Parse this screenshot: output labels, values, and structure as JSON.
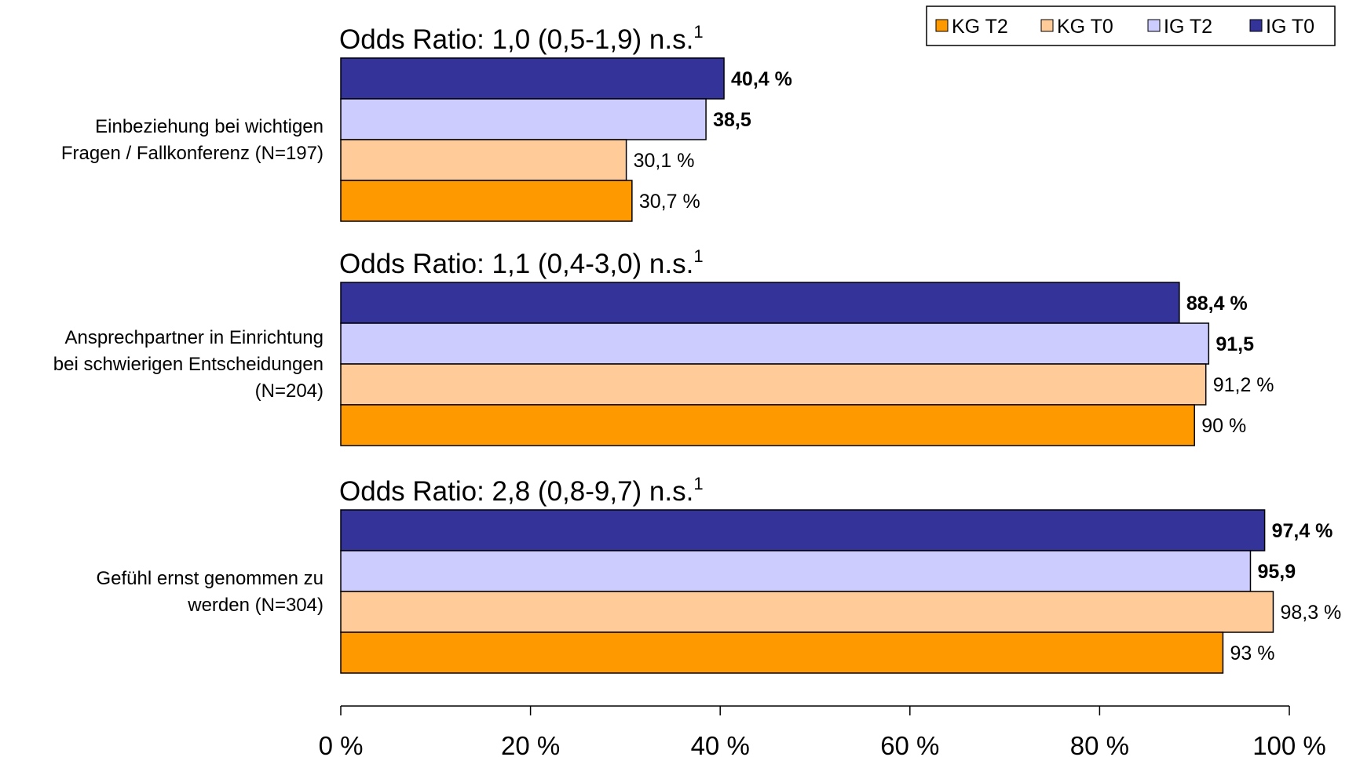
{
  "chart_data": {
    "type": "bar",
    "orientation": "horizontal",
    "xlim": [
      0,
      100
    ],
    "x_ticks": [
      "0 %",
      "20 %",
      "40 %",
      "60 %",
      "80 %",
      "100 %"
    ],
    "legend": {
      "placement": "top-right",
      "entries": [
        {
          "name": "KG T2",
          "color": "#FF9900"
        },
        {
          "name": "KG T0",
          "color": "#FFCC99"
        },
        {
          "name": "IG T2",
          "color": "#CCCCFF"
        },
        {
          "name": "IG T0",
          "color": "#333399"
        }
      ]
    },
    "groups": [
      {
        "label_lines": [
          "Einbeziehung bei wichtigen",
          "Fragen / Fallkonferenz (N=197)"
        ],
        "odds_ratio": "Odds Ratio: 1,0 (0,5-1,9) n.s.",
        "odds_sup": "1",
        "bars": [
          {
            "series": "IG T0",
            "value": 40.4,
            "label": "40,4 %",
            "bold": true
          },
          {
            "series": "IG T2",
            "value": 38.5,
            "label": "38,5",
            "bold": true
          },
          {
            "series": "KG T0",
            "value": 30.1,
            "label": "30,1 %",
            "bold": false
          },
          {
            "series": "KG T2",
            "value": 30.7,
            "label": "30,7 %",
            "bold": false
          }
        ]
      },
      {
        "label_lines": [
          "Ansprechpartner in Einrichtung",
          "bei schwierigen Entscheidungen",
          "(N=204)"
        ],
        "odds_ratio": "Odds Ratio: 1,1 (0,4-3,0) n.s.",
        "odds_sup": "1",
        "bars": [
          {
            "series": "IG T0",
            "value": 88.4,
            "label": "88,4 %",
            "bold": true
          },
          {
            "series": "IG T2",
            "value": 91.5,
            "label": "91,5",
            "bold": true
          },
          {
            "series": "KG T0",
            "value": 91.2,
            "label": "91,2 %",
            "bold": false
          },
          {
            "series": "KG T2",
            "value": 90,
            "label": "90 %",
            "bold": false
          }
        ]
      },
      {
        "label_lines": [
          "Gefühl ernst genommen zu",
          "werden (N=304)"
        ],
        "odds_ratio": "Odds Ratio: 2,8 (0,8-9,7) n.s.",
        "odds_sup": "1",
        "bars": [
          {
            "series": "IG T0",
            "value": 97.4,
            "label": "97,4 %",
            "bold": true
          },
          {
            "series": "IG T2",
            "value": 95.9,
            "label": "95,9",
            "bold": true
          },
          {
            "series": "KG T0",
            "value": 98.3,
            "label": "98,3 %",
            "bold": false
          },
          {
            "series": "KG T2",
            "value": 93,
            "label": "93 %",
            "bold": false
          }
        ]
      }
    ]
  }
}
